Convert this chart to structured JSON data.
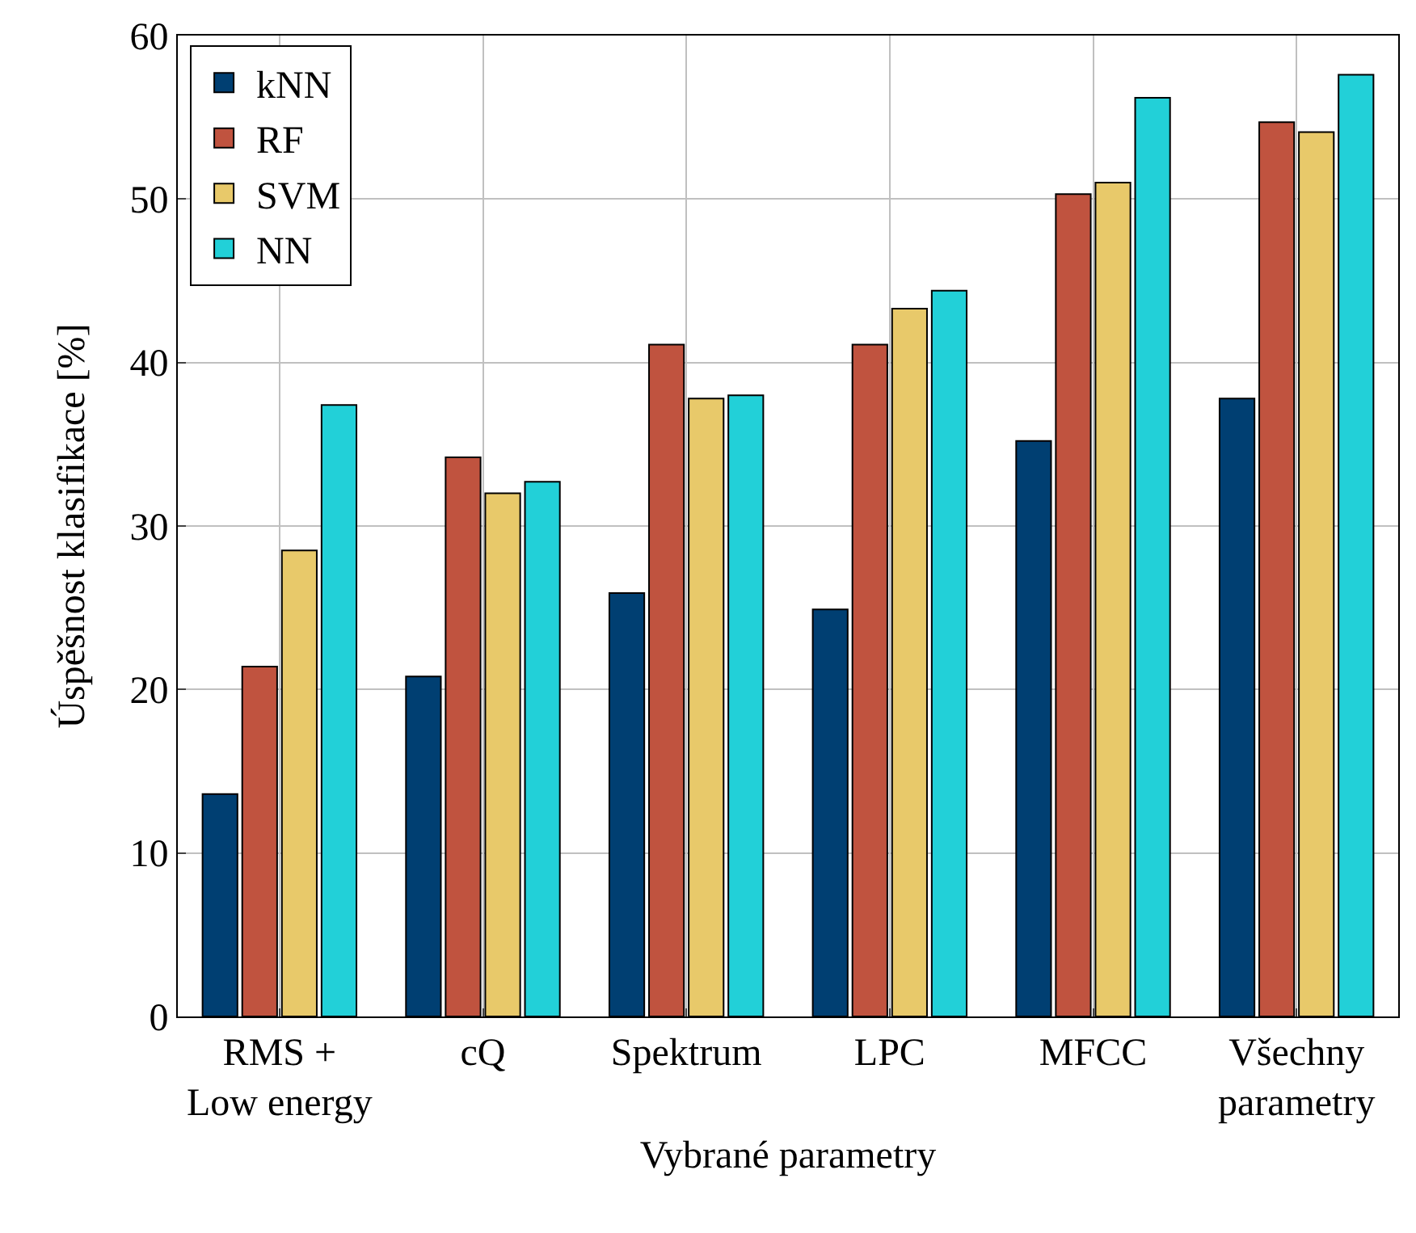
{
  "chart_data": {
    "type": "bar",
    "xlabel": "Vybrané parametry",
    "ylabel": "Úspěšnost klasifikace [%]",
    "categories": [
      "RMS +\nLow energy",
      "cQ",
      "Spektrum",
      "LPC",
      "MFCC",
      "Všechny\nparametry"
    ],
    "series": [
      {
        "name": "kNN",
        "color": "#003f72",
        "values": [
          13.6,
          20.8,
          25.9,
          24.9,
          35.2,
          37.8
        ]
      },
      {
        "name": "RF",
        "color": "#c0533f",
        "values": [
          21.4,
          34.2,
          41.1,
          41.1,
          50.3,
          54.7
        ]
      },
      {
        "name": "SVM",
        "color": "#e8c96a",
        "values": [
          28.5,
          32.0,
          37.8,
          43.3,
          51.0,
          54.1
        ]
      },
      {
        "name": "NN",
        "color": "#22d0d8",
        "values": [
          37.4,
          32.7,
          38.0,
          44.4,
          56.2,
          57.6
        ]
      }
    ],
    "ylim": [
      0,
      60
    ],
    "yticks": [
      0,
      10,
      20,
      30,
      40,
      50,
      60
    ],
    "grid": true,
    "legend": "top left"
  }
}
